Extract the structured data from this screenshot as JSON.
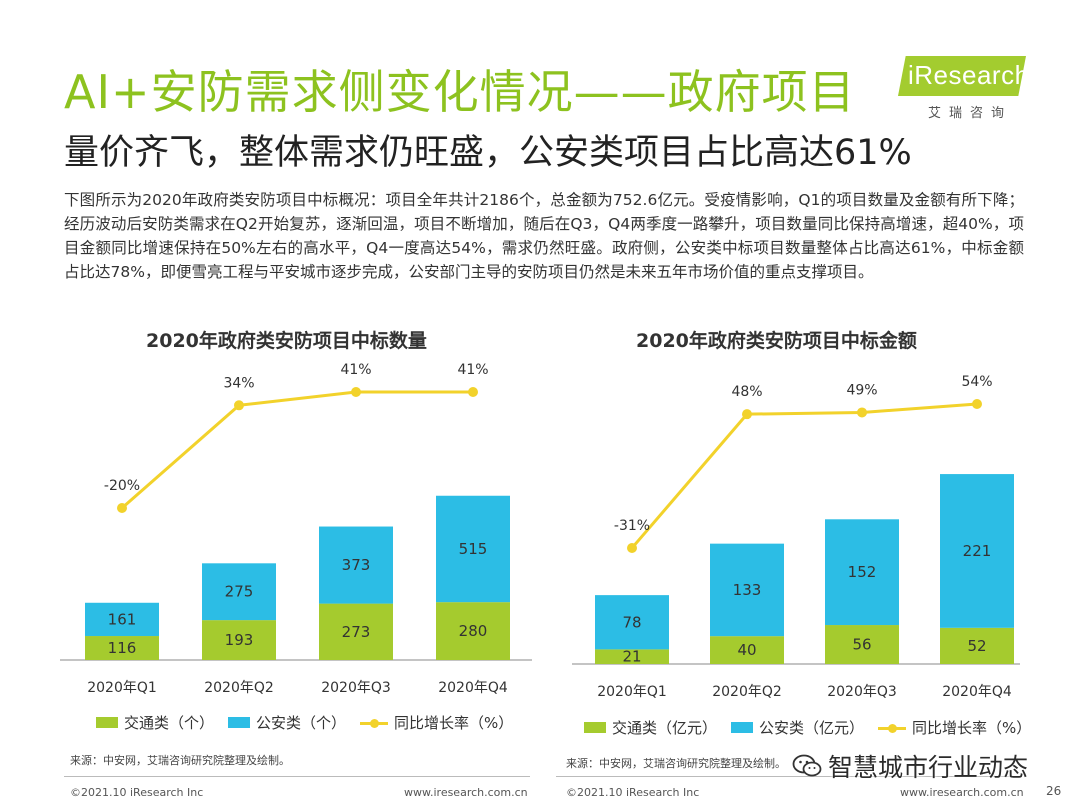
{
  "title": "AI+安防需求侧变化情况——政府项目",
  "subtitle": "量价齐飞，整体需求仍旺盛，公安类项目占比高达61%",
  "logo": {
    "brand": "iResearch",
    "cn": "艾瑞咨询"
  },
  "description": "下图所示为2020年政府类安防项目中标概况：项目全年共计2186个，总金额为752.6亿元。受疫情影响，Q1的项目数量及金额有所下降；经历波动后安防类需求在Q2开始复苏，逐渐回温，项目不断增加，随后在Q3，Q4两季度一路攀升，项目数量同比保持高增速，超40%，项目金额同比增速保持在50%左右的高水平，Q4一度高达54%，需求仍然旺盛。政府侧，公安类中标项目数量整体占比高达61%，中标金额占比达78%，即便雪亮工程与平安城市逐步完成，公安部门主导的安防项目仍然是未来五年市场价值的重点支撑项目。",
  "colors": {
    "traffic": "#A5CB2E",
    "police": "#2CBDE5",
    "growth": "#F2D22B",
    "title": "#8DC21F"
  },
  "chart_data": [
    {
      "type": "bar",
      "title": "2020年政府类安防项目中标数量",
      "categories": [
        "2020年Q1",
        "2020年Q2",
        "2020年Q3",
        "2020年Q4"
      ],
      "stacked": true,
      "series": [
        {
          "name": "交通类（个）",
          "values": [
            116,
            193,
            273,
            280
          ]
        },
        {
          "name": "公安类（个）",
          "values": [
            161,
            275,
            373,
            515
          ]
        }
      ],
      "line_series": {
        "name": "同比增长率（%）",
        "values": [
          -20,
          34,
          41,
          41
        ],
        "labels": [
          "-20%",
          "34%",
          "41%",
          "41%"
        ]
      },
      "source": "来源：中安网，艾瑞咨询研究院整理及绘制。"
    },
    {
      "type": "bar",
      "title": "2020年政府类安防项目中标金额",
      "categories": [
        "2020年Q1",
        "2020年Q2",
        "2020年Q3",
        "2020年Q4"
      ],
      "stacked": true,
      "series": [
        {
          "name": "交通类（亿元）",
          "values": [
            21,
            40,
            56,
            52
          ]
        },
        {
          "name": "公安类（亿元）",
          "values": [
            78,
            133,
            152,
            221
          ]
        }
      ],
      "line_series": {
        "name": "同比增长率（%）",
        "values": [
          -31,
          48,
          49,
          54
        ],
        "labels": [
          "-31%",
          "48%",
          "49%",
          "54%"
        ]
      },
      "source": "来源：中安网，艾瑞咨询研究院整理及绘制。"
    }
  ],
  "footer": {
    "copyright": "©2021.10 iResearch Inc",
    "url": "www.iresearch.com.cn",
    "page": "26"
  },
  "watermark": "智慧城市行业动态"
}
